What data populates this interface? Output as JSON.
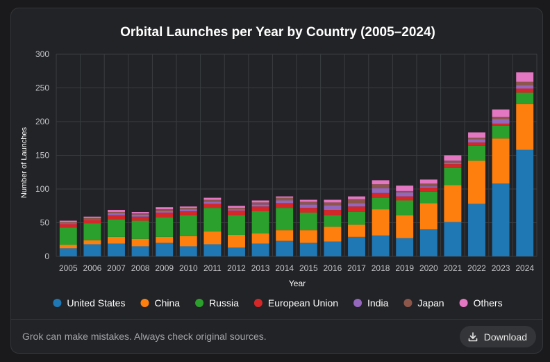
{
  "footer": {
    "disclaimer": "Grok can make mistakes. Always check original sources.",
    "download_label": "Download"
  },
  "chart_data": {
    "type": "bar",
    "stacked": true,
    "title": "Orbital Launches per Year by Country (2005–2024)",
    "xlabel": "Year",
    "ylabel": "Number of Launches",
    "ylim": [
      0,
      300
    ],
    "yticks": [
      0,
      50,
      100,
      150,
      200,
      250,
      300
    ],
    "grid": true,
    "legend_position": "bottom",
    "categories": [
      "2005",
      "2006",
      "2007",
      "2008",
      "2009",
      "2010",
      "2011",
      "2012",
      "2013",
      "2014",
      "2015",
      "2016",
      "2017",
      "2018",
      "2019",
      "2020",
      "2021",
      "2022",
      "2023",
      "2024"
    ],
    "series": [
      {
        "name": "United States",
        "color": "#1f77b4",
        "values": [
          12,
          18,
          19,
          15,
          20,
          15,
          18,
          13,
          19,
          23,
          20,
          22,
          29,
          31,
          27,
          40,
          51,
          78,
          108,
          158
        ]
      },
      {
        "name": "China",
        "color": "#ff7f0e",
        "values": [
          5,
          6,
          10,
          11,
          9,
          15,
          19,
          19,
          15,
          16,
          19,
          22,
          18,
          39,
          34,
          39,
          55,
          64,
          67,
          68
        ]
      },
      {
        "name": "Russia",
        "color": "#2ca02c",
        "values": [
          26,
          25,
          26,
          27,
          29,
          31,
          35,
          29,
          33,
          33,
          26,
          17,
          19,
          17,
          22,
          17,
          25,
          22,
          19,
          17
        ]
      },
      {
        "name": "European Union",
        "color": "#d62728",
        "values": [
          5,
          5,
          6,
          6,
          7,
          6,
          6,
          7,
          7,
          7,
          7,
          8,
          8,
          7,
          6,
          6,
          6,
          5,
          3,
          6
        ]
      },
      {
        "name": "India",
        "color": "#9467bd",
        "values": [
          1,
          1,
          3,
          3,
          2,
          3,
          3,
          2,
          3,
          4,
          5,
          7,
          5,
          7,
          6,
          2,
          2,
          5,
          7,
          5
        ]
      },
      {
        "name": "Japan",
        "color": "#8c564b",
        "values": [
          2,
          2,
          2,
          2,
          3,
          2,
          3,
          2,
          3,
          4,
          4,
          4,
          6,
          6,
          2,
          4,
          3,
          2,
          3,
          5
        ]
      },
      {
        "name": "Others",
        "color": "#e377c2",
        "values": [
          2,
          2,
          3,
          2,
          3,
          2,
          3,
          3,
          3,
          2,
          3,
          4,
          4,
          6,
          8,
          6,
          8,
          8,
          11,
          14
        ]
      }
    ]
  }
}
